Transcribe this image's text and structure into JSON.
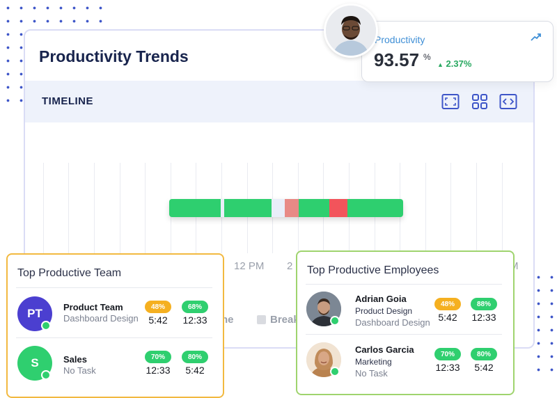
{
  "main": {
    "title": "Productivity Trends",
    "timeline_label": "TIMELINE",
    "tools": [
      "fullscreen-icon",
      "grid-icon",
      "code-icon"
    ],
    "timeline_ticks": [
      "12 PM",
      "2",
      "M"
    ],
    "legend": [
      "ne",
      "Break"
    ]
  },
  "productivity": {
    "label": "Productivity",
    "value": "93.57",
    "unit": "%",
    "change": "2.37%",
    "change_color": "#28a860"
  },
  "team": {
    "title": "Top Productive Team",
    "rows": [
      {
        "initials": "PT",
        "name": "Product Team",
        "sub": "Dashboard Design",
        "avatar_color": "#4b3fd0",
        "pill1": "48%",
        "pill1_color": "#f5b020",
        "time1": "5:42",
        "pill2": "68%",
        "pill2_color": "#2fcf6f",
        "time2": "12:33"
      },
      {
        "initials": "S",
        "name": "Sales",
        "sub": "No Task",
        "avatar_color": "#2fcf6f",
        "pill1": "70%",
        "pill1_color": "#2fcf6f",
        "time1": "12:33",
        "pill2": "80%",
        "pill2_color": "#2fcf6f",
        "time2": "5:42"
      }
    ]
  },
  "employees": {
    "title": "Top Productive Employees",
    "rows": [
      {
        "name": "Adrian Goia",
        "dept": "Product Design",
        "sub": "Dashboard Design",
        "pill1": "48%",
        "pill1_color": "#f5b020",
        "time1": "5:42",
        "pill2": "88%",
        "pill2_color": "#2fcf6f",
        "time2": "12:33"
      },
      {
        "name": "Carlos Garcia",
        "dept": "Marketing",
        "sub": "No Task",
        "pill1": "70%",
        "pill1_color": "#2fcf6f",
        "time1": "12:33",
        "pill2": "80%",
        "pill2_color": "#2fcf6f",
        "time2": "5:42"
      }
    ]
  },
  "colors": {
    "productive": "#2ecf6f",
    "idle": "#e9eef9",
    "unproductive_light": "#e88a86",
    "unproductive": "#f2545b"
  }
}
